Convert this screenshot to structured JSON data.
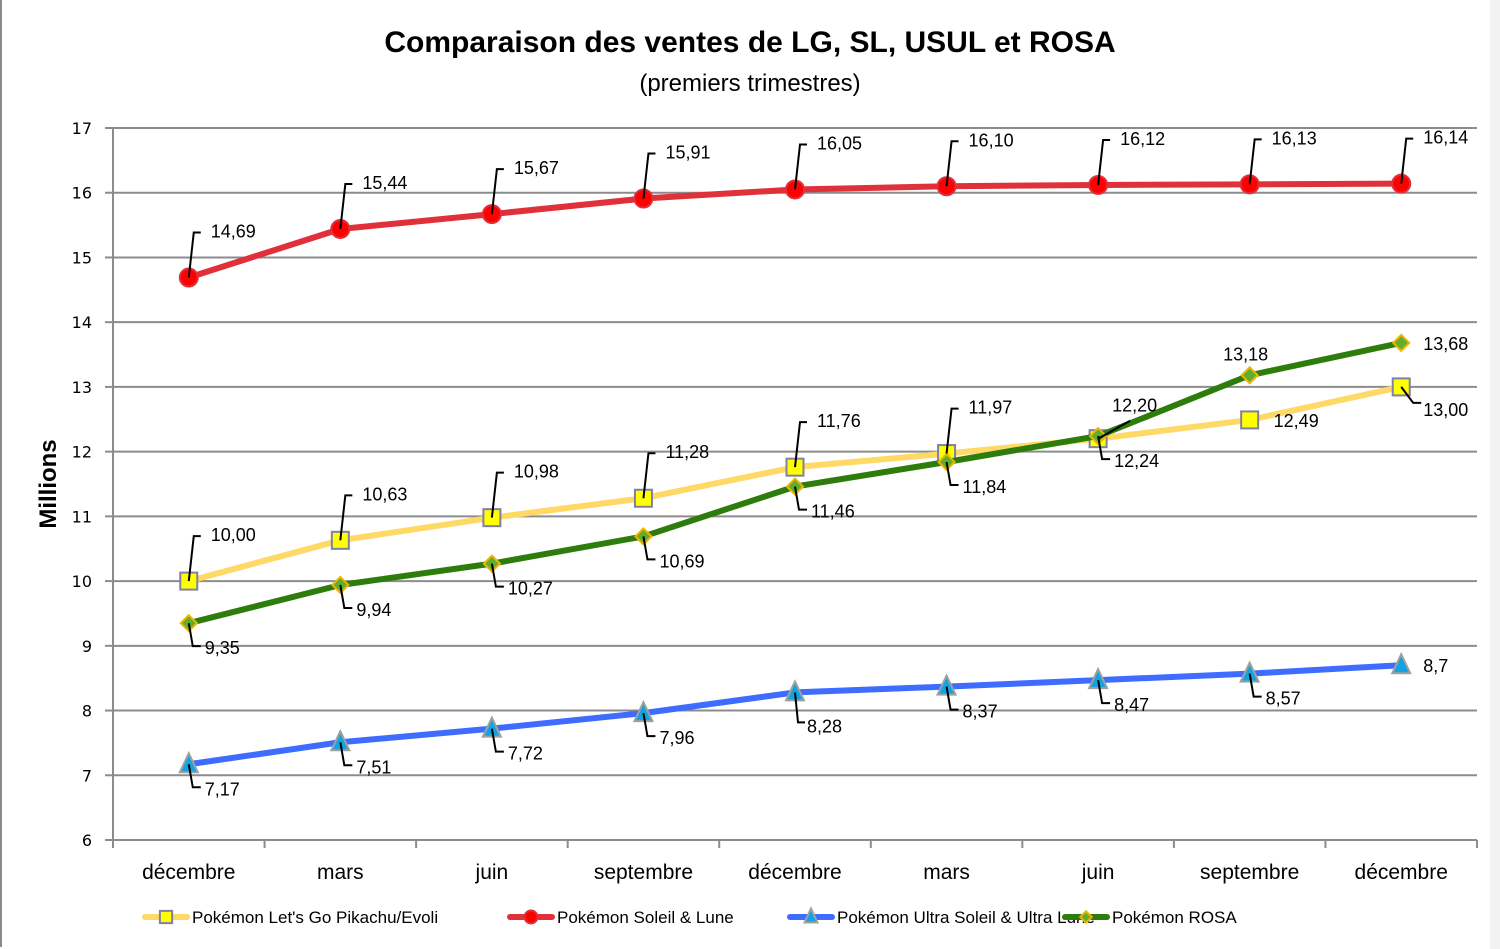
{
  "chart_data": {
    "type": "line",
    "title": "Comparaison des ventes de LG, SL, USUL et ROSA",
    "subtitle": "(premiers trimestres)",
    "xlabel": "",
    "ylabel": "Millions",
    "ylim": [
      6,
      17
    ],
    "yticks": [
      6,
      7,
      8,
      9,
      10,
      11,
      12,
      13,
      14,
      15,
      16,
      17
    ],
    "grid": true,
    "legend_position": "bottom",
    "categories": [
      "décembre",
      "mars",
      "juin",
      "septembre",
      "décembre",
      "mars",
      "juin",
      "septembre",
      "décembre"
    ],
    "series": [
      {
        "name": "Pokémon Let's Go Pikachu/Evoli",
        "color": "#ffd966",
        "marker": "square",
        "marker_fill": "#ffff00",
        "marker_stroke": "#7f7fa8",
        "values": [
          null,
          null,
          null,
          null,
          null,
          null,
          null,
          null,
          null
        ],
        "points": [
          {
            "x": 0,
            "y": 10.0,
            "label": "10,00"
          },
          {
            "x": 1,
            "y": 10.63,
            "label": "10,63"
          },
          {
            "x": 2,
            "y": 10.98,
            "label": "10,98"
          },
          {
            "x": 3,
            "y": 11.28,
            "label": "11,28"
          },
          {
            "x": 4,
            "y": 11.76,
            "label": "11,76"
          },
          {
            "x": 5,
            "y": 11.97,
            "label": "11,97"
          },
          {
            "x": 6,
            "y": 12.2,
            "label": "12,20"
          },
          {
            "x": 7,
            "y": 12.49,
            "label": "12,49"
          },
          {
            "x": 8,
            "y": 13.0,
            "label": "13,00"
          }
        ]
      },
      {
        "name": "Pokémon Soleil & Lune",
        "color": "#e0303a",
        "marker": "circle",
        "marker_fill": "#ff0000",
        "marker_stroke": "#e0303a",
        "points": [
          {
            "x": 0,
            "y": 14.69,
            "label": "14,69"
          },
          {
            "x": 1,
            "y": 15.44,
            "label": "15,44"
          },
          {
            "x": 2,
            "y": 15.67,
            "label": "15,67"
          },
          {
            "x": 3,
            "y": 15.91,
            "label": "15,91"
          },
          {
            "x": 4,
            "y": 16.05,
            "label": "16,05"
          },
          {
            "x": 5,
            "y": 16.1,
            "label": "16,10"
          },
          {
            "x": 6,
            "y": 16.12,
            "label": "16,12"
          },
          {
            "x": 7,
            "y": 16.13,
            "label": "16,13"
          },
          {
            "x": 8,
            "y": 16.14,
            "label": "16,14"
          }
        ]
      },
      {
        "name": "Pokémon Ultra Soleil & Ultra Lune",
        "color": "#3d6cff",
        "marker": "triangle",
        "marker_fill": "#12a3e0",
        "marker_stroke": "#a0a0a0",
        "points": [
          {
            "x": 0,
            "y": 7.17,
            "label": "7,17"
          },
          {
            "x": 1,
            "y": 7.51,
            "label": "7,51"
          },
          {
            "x": 2,
            "y": 7.72,
            "label": "7,72"
          },
          {
            "x": 3,
            "y": 7.96,
            "label": "7,96"
          },
          {
            "x": 4,
            "y": 8.28,
            "label": "8,28"
          },
          {
            "x": 5,
            "y": 8.37,
            "label": "8,37"
          },
          {
            "x": 6,
            "y": 8.47,
            "label": "8,47"
          },
          {
            "x": 7,
            "y": 8.57,
            "label": "8,57"
          },
          {
            "x": 8,
            "y": 8.7,
            "label": "8,7"
          }
        ]
      },
      {
        "name": "Pokémon ROSA",
        "color": "#2e7d0c",
        "marker": "diamond",
        "marker_fill": "#5fae2e",
        "marker_stroke": "#f0b400",
        "points": [
          {
            "x": 0,
            "y": 9.35,
            "label": "9,35"
          },
          {
            "x": 1,
            "y": 9.94,
            "label": "9,94"
          },
          {
            "x": 2,
            "y": 10.27,
            "label": "10,27"
          },
          {
            "x": 3,
            "y": 10.69,
            "label": "10,69"
          },
          {
            "x": 4,
            "y": 11.46,
            "label": "11,46"
          },
          {
            "x": 5,
            "y": 11.84,
            "label": "11,84"
          },
          {
            "x": 6,
            "y": 12.24,
            "label": "12,24"
          },
          {
            "x": 7,
            "y": 13.18,
            "label": "13,18"
          },
          {
            "x": 8,
            "y": 13.68,
            "label": "13,68"
          }
        ]
      }
    ]
  }
}
